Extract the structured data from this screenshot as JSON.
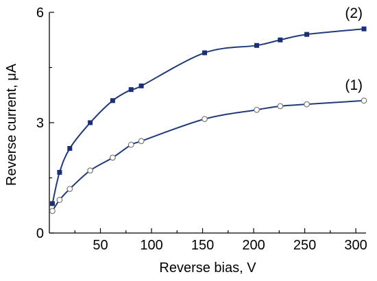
{
  "chart_data": {
    "type": "scatter",
    "xlabel": "Reverse bias, V",
    "ylabel": "Reverse current, μA",
    "xlim": [
      0,
      310
    ],
    "ylim": [
      0,
      6
    ],
    "x_ticks": [
      50,
      100,
      150,
      200,
      250,
      300
    ],
    "y_ticks": [
      0,
      3,
      6
    ],
    "grid": false,
    "legend": "none",
    "line_color": "#1f3a7a",
    "series": [
      {
        "name": "(1)",
        "marker": "open-circle",
        "x": [
          3,
          10,
          20,
          40,
          62,
          80,
          90,
          152,
          203,
          226,
          252,
          308
        ],
        "y": [
          0.6,
          0.9,
          1.2,
          1.7,
          2.05,
          2.4,
          2.5,
          3.1,
          3.35,
          3.45,
          3.5,
          3.6
        ]
      },
      {
        "name": "(2)",
        "marker": "filled-square",
        "x": [
          3,
          10,
          20,
          40,
          62,
          80,
          90,
          152,
          203,
          226,
          252,
          308
        ],
        "y": [
          0.8,
          1.65,
          2.3,
          3.0,
          3.6,
          3.9,
          4.0,
          4.9,
          5.1,
          5.25,
          5.4,
          5.55
        ]
      }
    ]
  }
}
